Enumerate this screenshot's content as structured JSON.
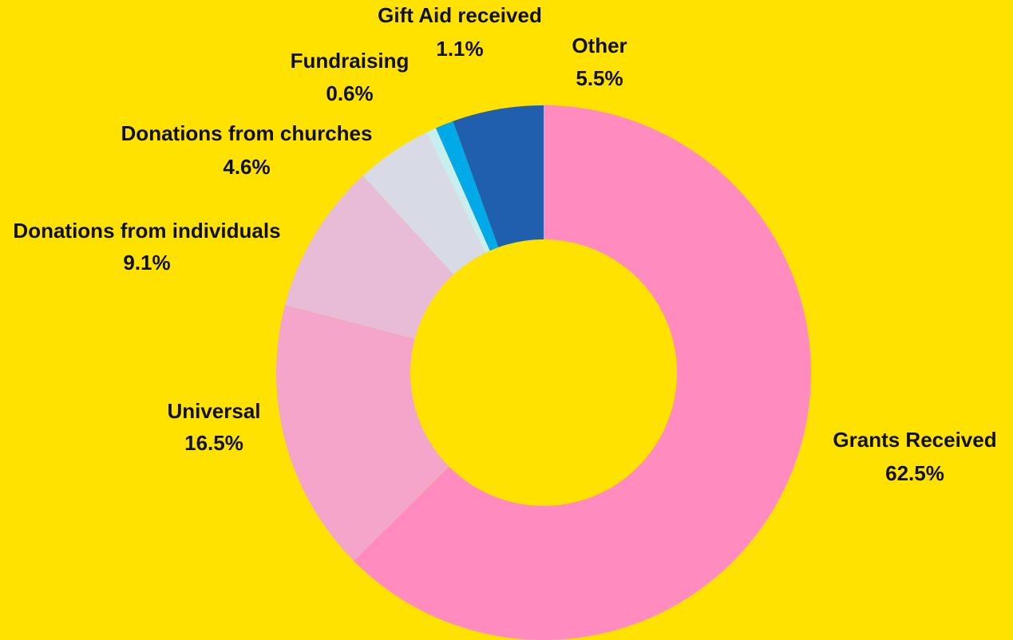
{
  "chart_data": {
    "type": "donut",
    "categories": [
      "Grants Received",
      "Universal",
      "Donations from individuals",
      "Donations from churches",
      "Fundraising",
      "Gift Aid received",
      "Other"
    ],
    "values": [
      62.5,
      16.5,
      9.1,
      4.6,
      0.6,
      1.1,
      5.5
    ],
    "value_labels": [
      "62.5%",
      "16.5%",
      "9.1%",
      "4.6%",
      "0.6%",
      "1.1%",
      "5.5%"
    ],
    "colors": [
      "#ff8bbf",
      "#f4a5c9",
      "#e8bcd7",
      "#d8dae6",
      "#c9eef0",
      "#00a9e8",
      "#1f5fae"
    ]
  }
}
